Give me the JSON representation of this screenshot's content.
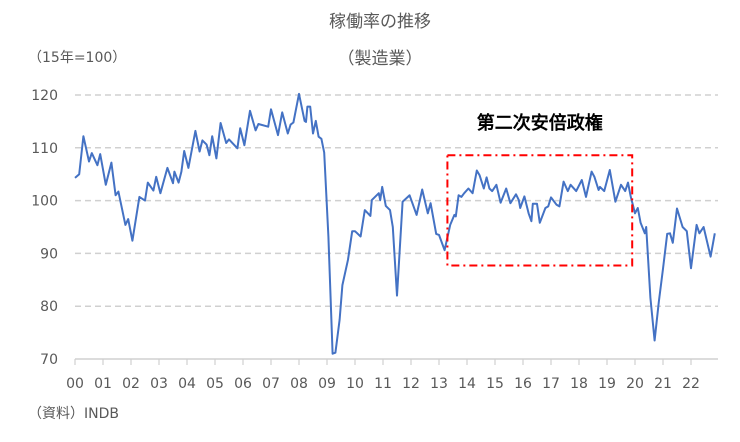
{
  "chart_data": {
    "type": "line",
    "title": "稼働率の推移",
    "subtitle": "（製造業）",
    "unit_label": "（15年=100）",
    "source": "（資料）INDB",
    "ylim": [
      70,
      120
    ],
    "yticks": [
      70,
      80,
      90,
      100,
      110,
      120
    ],
    "xlim": [
      2000,
      2023
    ],
    "xtick_labels": [
      "00",
      "01",
      "02",
      "03",
      "04",
      "05",
      "06",
      "07",
      "08",
      "09",
      "10",
      "11",
      "12",
      "13",
      "14",
      "15",
      "16",
      "17",
      "18",
      "19",
      "20",
      "21",
      "22"
    ],
    "grid": true,
    "line_color": "#4472C4",
    "annotation": {
      "label": "第二次安倍政権",
      "box_color": "#FF0000",
      "x_range": [
        2013.3,
        2019.9
      ],
      "y_range": [
        87.7,
        108.6
      ]
    },
    "series": [
      {
        "x": [
          2000.0,
          2000.15,
          2000.3,
          2000.5,
          2000.6,
          2000.8,
          2000.9,
          2001.1,
          2001.3,
          2001.45,
          2001.55,
          2001.8,
          2001.9,
          2002.05,
          2002.3,
          2002.5,
          2002.6,
          2002.8,
          2002.9,
          2003.05,
          2003.3,
          2003.5,
          2003.55,
          2003.7,
          2003.8,
          2003.9,
          2004.05,
          2004.3,
          2004.45,
          2004.55,
          2004.7,
          2004.8,
          2004.9,
          2005.05,
          2005.2,
          2005.4,
          2005.5,
          2005.8,
          2005.9,
          2006.05,
          2006.25,
          2006.45,
          2006.55,
          2006.9,
          2007.0,
          2007.25,
          2007.4,
          2007.6,
          2007.7,
          2007.8,
          2008.0,
          2008.2,
          2008.25,
          2008.3,
          2008.4,
          2008.5,
          2008.6,
          2008.7,
          2008.8,
          2008.9,
          2009.05,
          2009.2,
          2009.3,
          2009.45,
          2009.55,
          2009.75,
          2009.9,
          2010.0,
          2010.2,
          2010.35,
          2010.55,
          2010.6,
          2010.85,
          2010.9,
          2010.97,
          2011.1,
          2011.25,
          2011.35,
          2011.5,
          2011.7,
          2011.95,
          2012.2,
          2012.4,
          2012.6,
          2012.7,
          2012.9,
          2013.0,
          2013.2,
          2013.4,
          2013.55,
          2013.6,
          2013.7,
          2013.8,
          2013.9,
          2014.05,
          2014.2,
          2014.35,
          2014.45,
          2014.6,
          2014.7,
          2014.8,
          2014.9,
          2015.05,
          2015.2,
          2015.4,
          2015.55,
          2015.75,
          2015.85,
          2015.9,
          2016.05,
          2016.2,
          2016.3,
          2016.35,
          2016.5,
          2016.6,
          2016.8,
          2016.9,
          2017.0,
          2017.2,
          2017.3,
          2017.45,
          2017.6,
          2017.7,
          2017.9,
          2018.1,
          2018.25,
          2018.45,
          2018.55,
          2018.7,
          2018.75,
          2018.9,
          2019.1,
          2019.3,
          2019.5,
          2019.65,
          2019.75,
          2019.85,
          2020.0,
          2020.1,
          2020.2,
          2020.35,
          2020.4,
          2020.55,
          2020.7,
          2020.85,
          2021.0,
          2021.15,
          2021.25,
          2021.35,
          2021.5,
          2021.7,
          2021.85,
          2022.0,
          2022.2,
          2022.3,
          2022.45,
          2022.7,
          2022.85
        ],
        "y": [
          104.3,
          105,
          112.2,
          107.4,
          109,
          106.7,
          108.8,
          103,
          107.2,
          101,
          101.7,
          95.4,
          96.5,
          92.4,
          100.7,
          100,
          103.4,
          101.9,
          104.5,
          101.4,
          106.2,
          103.3,
          105.5,
          103.4,
          105.5,
          109.4,
          106.2,
          113.2,
          109.3,
          111.4,
          110.6,
          108.6,
          112.2,
          108,
          114.7,
          110.9,
          111.6,
          109.9,
          113.7,
          110.5,
          117,
          113.3,
          114.5,
          114,
          117.3,
          112.4,
          116.7,
          112.7,
          114.4,
          114.8,
          120.2,
          115.1,
          114.9,
          117.8,
          117.8,
          112.7,
          115.1,
          112.1,
          111.7,
          109.1,
          93.2,
          71,
          71.2,
          77.4,
          84,
          88.8,
          94.2,
          94.2,
          93.2,
          98.2,
          97.1,
          100.1,
          101.4,
          100.1,
          102.6,
          99,
          98.2,
          95,
          82,
          99.8,
          101,
          97.3,
          102.1,
          97.6,
          99.5,
          93.7,
          93.5,
          90.6,
          95.4,
          97.3,
          97,
          101,
          100.7,
          101.4,
          102.3,
          101.4,
          105.7,
          104.8,
          102.3,
          104.4,
          102.3,
          101.8,
          103,
          99.6,
          102.3,
          99.5,
          101.2,
          100.1,
          98.6,
          100.8,
          97.6,
          96.1,
          99.4,
          99.4,
          95.8,
          98.6,
          98.9,
          100.6,
          99.2,
          98.9,
          103.6,
          101.8,
          103,
          101.8,
          103.9,
          100.7,
          105.5,
          104.5,
          102,
          102.6,
          101.8,
          105.8,
          99.8,
          103,
          101.8,
          103.4,
          100.7,
          97.6,
          98.6,
          95.8,
          93.8,
          95,
          81.6,
          73.5,
          80.8,
          87.1,
          93.7,
          93.8,
          92,
          98.5,
          95,
          94.2,
          87.2,
          95.4,
          93.8,
          95,
          89.4,
          93.8
        ]
      }
    ]
  }
}
